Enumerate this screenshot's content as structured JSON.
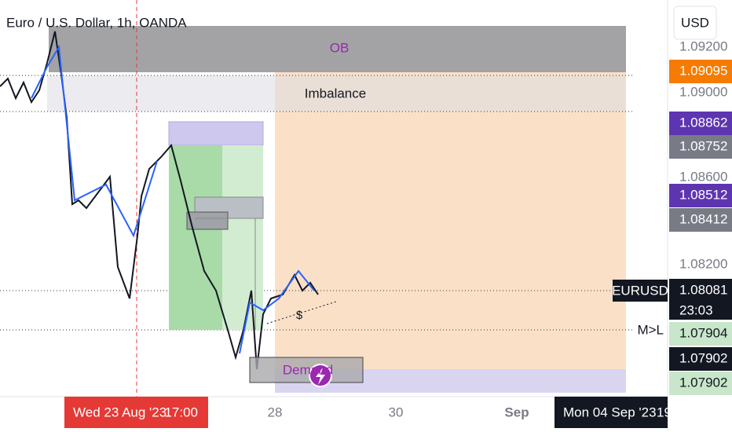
{
  "header": {
    "title": "Euro / U.S. Dollar, 1h, OANDA",
    "currency": "USD"
  },
  "zones": {
    "ob": "OB",
    "imbalance": "Imbalance",
    "demand": "Demand",
    "ml": "M>L",
    "dollar": "$"
  },
  "price_axis": {
    "labels": [
      "1.09200",
      "1.09000",
      "1.08600",
      "1.08200"
    ],
    "tags": [
      "1.09095",
      "1.08862",
      "1.08752",
      "1.08512",
      "1.08412",
      "1.08081",
      "1.07904",
      "1.07902",
      "1.07902"
    ],
    "symbol": "EURUSD",
    "countdown": "23:03"
  },
  "time_axis": {
    "cursor_date": "Wed 23 Aug '23",
    "cursor_time": "17:00",
    "labels": [
      "28",
      "30",
      "Sep"
    ],
    "end_date": "Mon 04 Sep '23",
    "end_time": "19"
  }
}
